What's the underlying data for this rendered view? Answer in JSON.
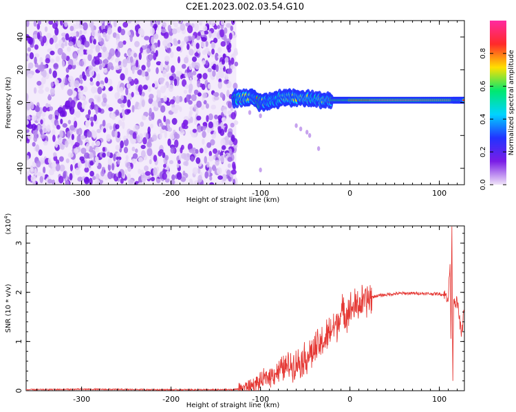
{
  "title": "C2E1.2023.002.03.54.G10",
  "colors": {
    "snr_line": "#e53935",
    "axis": "#000000"
  },
  "chart_data": [
    {
      "type": "heatmap",
      "xlabel": "Height of straight line (km)",
      "ylabel": "Frequency (Hz)",
      "xlim": [
        -362,
        128
      ],
      "ylim": [
        -50,
        50
      ],
      "x_ticks": [
        -300,
        -200,
        -100,
        0,
        100
      ],
      "y_ticks": [
        -40,
        -20,
        0,
        20,
        40
      ],
      "colorbar": {
        "label": "Normalized spectral amplitude",
        "range": [
          0.0,
          1.0
        ],
        "ticks": [
          0.0,
          0.2,
          0.4,
          0.6,
          0.8
        ],
        "tick_labels": [
          "0.0",
          "0.2",
          "0.4",
          "0.6",
          "0.8"
        ],
        "colormap": [
          "#f0e4f8",
          "#7a1ce6",
          "#2233ff",
          "#00d4ff",
          "#00e870",
          "#ffe000",
          "#ff2a2a",
          "#ff2aa0"
        ]
      },
      "noise_region": {
        "x_range": [
          -362,
          -127
        ],
        "freq_range": [
          -50,
          50
        ],
        "amplitude": 0.15
      },
      "signal_band": [
        {
          "x": -130,
          "freq": 2.5,
          "amplitude": 0.55
        },
        {
          "x": -110,
          "freq": 3,
          "amplitude": 0.8
        },
        {
          "x": -100,
          "freq": 0,
          "amplitude": 0.85
        },
        {
          "x": -90,
          "freq": 1,
          "amplitude": 0.6
        },
        {
          "x": -75,
          "freq": 3,
          "amplitude": 0.65
        },
        {
          "x": -60,
          "freq": 3,
          "amplitude": 0.75
        },
        {
          "x": -40,
          "freq": 2,
          "amplitude": 0.6
        },
        {
          "x": -20,
          "freq": 1.5,
          "amplitude": 0.85
        },
        {
          "x": 0,
          "freq": 1.5,
          "amplitude": 0.9
        },
        {
          "x": 40,
          "freq": 1.5,
          "amplitude": 0.95
        },
        {
          "x": 80,
          "freq": 1.5,
          "amplitude": 0.95
        },
        {
          "x": 115,
          "freq": 1.5,
          "amplitude": 0.95
        },
        {
          "x": 128,
          "freq": 1.5,
          "amplitude": 0.8
        }
      ],
      "scatter_points": [
        {
          "x": -112,
          "freq": -6
        },
        {
          "x": -100,
          "freq": -8
        },
        {
          "x": -60,
          "freq": -14
        },
        {
          "x": -55,
          "freq": -16
        },
        {
          "x": -48,
          "freq": -18
        },
        {
          "x": -45,
          "freq": -20
        },
        {
          "x": -35,
          "freq": -28
        },
        {
          "x": -100,
          "freq": -41
        }
      ]
    },
    {
      "type": "line",
      "xlabel": "Height of straight line (km)",
      "ylabel": "SNR (10 * v/v)",
      "y_multiplier_label": "(x10",
      "y_multiplier_exponent": "4",
      "xlim": [
        -362,
        128
      ],
      "ylim": [
        0,
        3.35
      ],
      "x_ticks": [
        -300,
        -200,
        -100,
        0,
        100
      ],
      "y_ticks": [
        0,
        1,
        2,
        3
      ],
      "series": [
        {
          "x": [
            -362,
            -300,
            -200,
            -130,
            -115,
            -108,
            -100,
            -95,
            -90,
            -80,
            -70,
            -60,
            -55,
            -50,
            -45,
            -40,
            -35,
            -30,
            -25,
            -20,
            -15,
            -12,
            -10,
            -5,
            0,
            5,
            10,
            15,
            20,
            25,
            30,
            40,
            50,
            60,
            70,
            80,
            90,
            100,
            105,
            110,
            112,
            113,
            114,
            115,
            116,
            118,
            120,
            125,
            128
          ],
          "y": [
            0.02,
            0.03,
            0.02,
            0.02,
            0.08,
            0.12,
            0.18,
            0.25,
            0.3,
            0.4,
            0.5,
            0.55,
            0.6,
            0.65,
            0.75,
            0.8,
            0.9,
            1.0,
            1.1,
            1.25,
            1.35,
            1.5,
            1.55,
            1.6,
            1.65,
            1.7,
            1.75,
            1.8,
            1.85,
            1.9,
            1.93,
            1.95,
            1.97,
            1.98,
            1.98,
            1.98,
            1.97,
            1.97,
            1.95,
            1.9,
            2.6,
            1.0,
            3.3,
            0.2,
            1.9,
            1.8,
            1.8,
            1.1,
            1.8
          ]
        }
      ]
    }
  ]
}
